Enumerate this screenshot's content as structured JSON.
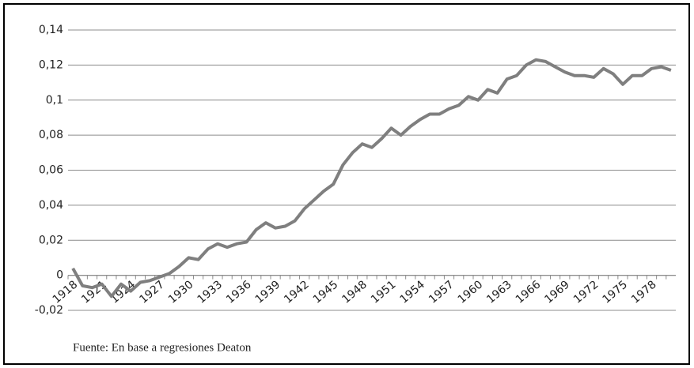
{
  "chart_data": {
    "type": "line",
    "categories": [
      "1918",
      null,
      null,
      "1921",
      null,
      null,
      "1924",
      null,
      null,
      "1927",
      null,
      null,
      "1930",
      null,
      null,
      "1933",
      null,
      null,
      "1936",
      null,
      null,
      "1939",
      null,
      null,
      "1942",
      null,
      null,
      "1945",
      null,
      null,
      "1948",
      null,
      null,
      "1951",
      null,
      null,
      "1954",
      null,
      null,
      "1957",
      null,
      null,
      "1960",
      null,
      null,
      "1963",
      null,
      null,
      "1966",
      null,
      null,
      "1969",
      null,
      null,
      "1972",
      null,
      null,
      "1975",
      null,
      null,
      "1978",
      null,
      null
    ],
    "values": [
      0.004,
      -0.006,
      -0.007,
      -0.005,
      -0.012,
      -0.005,
      -0.009,
      -0.004,
      -0.003,
      -0.001,
      0.001,
      0.005,
      0.01,
      0.009,
      0.015,
      0.018,
      0.016,
      0.018,
      0.019,
      0.026,
      0.03,
      0.027,
      0.028,
      0.031,
      0.038,
      0.043,
      0.048,
      0.052,
      0.063,
      0.07,
      0.075,
      0.073,
      0.078,
      0.084,
      0.08,
      0.085,
      0.089,
      0.092,
      0.092,
      0.095,
      0.097,
      0.102,
      0.1,
      0.106,
      0.104,
      0.112,
      0.114,
      0.12,
      0.123,
      0.122,
      0.119,
      0.116,
      0.114,
      0.114,
      0.113,
      0.118,
      0.115,
      0.109,
      0.114,
      0.114,
      0.118,
      0.119,
      0.117
    ],
    "color": "#7f7f7f",
    "ylim": [
      -0.02,
      0.14
    ],
    "yticks": [
      {
        "value": -0.02,
        "label": "-0,02"
      },
      0,
      {
        "value": 0.02,
        "label": "0,02"
      },
      {
        "value": 0.04,
        "label": "0,04"
      },
      {
        "value": 0.06,
        "label": "0,06"
      },
      {
        "value": 0.08,
        "label": "0,08"
      },
      {
        "value": 0.1,
        "label": "0,1"
      },
      {
        "value": 0.12,
        "label": "0,12"
      },
      {
        "value": 0.14,
        "label": "0,14"
      }
    ],
    "grid": true,
    "source": "Fuente: En base a regresiones Deaton"
  }
}
